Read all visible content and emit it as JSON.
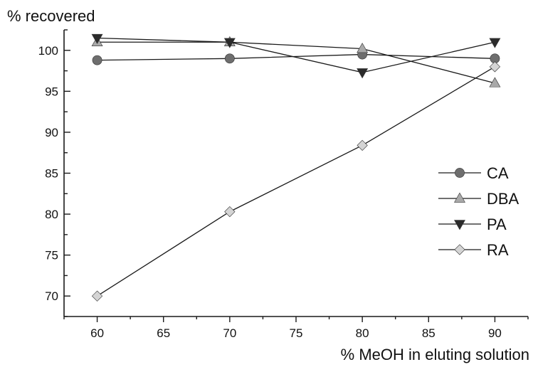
{
  "chart_data": {
    "type": "line",
    "title": "",
    "xlabel": "% MeOH in eluting solution",
    "ylabel": "% recovered",
    "x": [
      60,
      70,
      80,
      90
    ],
    "xlim": [
      57.5,
      92.5
    ],
    "ylim": [
      67.5,
      102.5
    ],
    "xticks_major": [
      60,
      65,
      70,
      75,
      80,
      85,
      90
    ],
    "yticks_major": [
      70,
      75,
      80,
      85,
      90,
      95,
      100
    ],
    "grid": false,
    "legend": "right",
    "series": [
      {
        "name": "CA",
        "values": [
          98.8,
          99.0,
          99.5,
          99.0
        ],
        "marker": "circle",
        "color": "#6e6e6e"
      },
      {
        "name": "DBA",
        "values": [
          101.0,
          101.0,
          100.2,
          96.0
        ],
        "marker": "triangle-up",
        "color": "#a9a9a9"
      },
      {
        "name": "PA",
        "values": [
          101.5,
          101.0,
          97.3,
          101.0
        ],
        "marker": "triangle-down",
        "color": "#2b2b2b"
      },
      {
        "name": "RA",
        "values": [
          70.0,
          80.3,
          88.4,
          98.0
        ],
        "marker": "diamond",
        "color": "#d4d4d4"
      }
    ]
  }
}
